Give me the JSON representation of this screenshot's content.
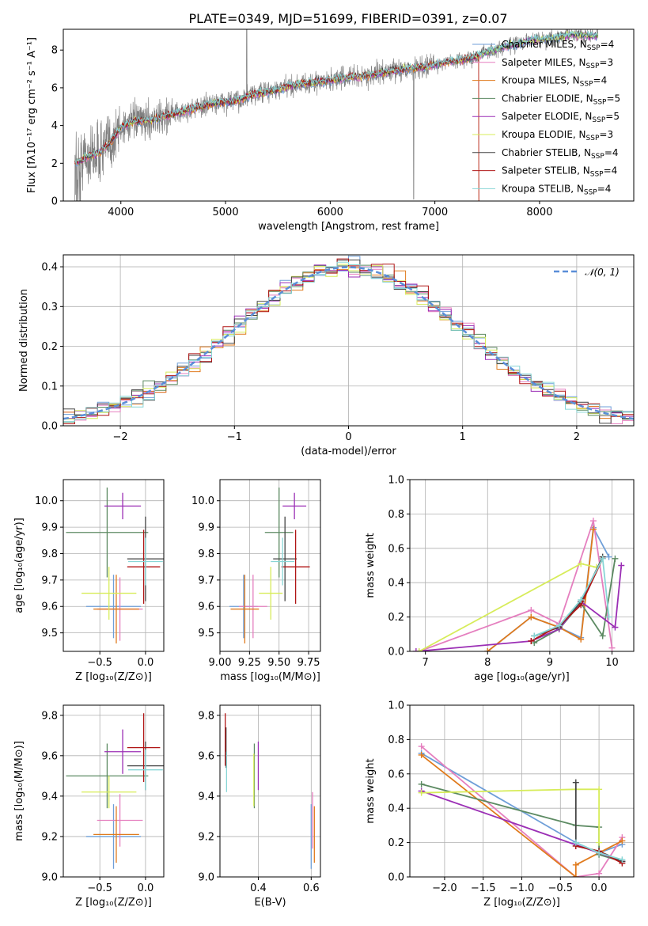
{
  "figure": {
    "title": "PLATE=0349, MJD=51699, FIBERID=0391, z=0.07"
  },
  "palette": {
    "data_gray": "#808080",
    "grid": "#b0b0b0",
    "normal_curve": "#5a8ed8"
  },
  "models": [
    {
      "name": "Chabrier MILES",
      "nssp": "4",
      "color": "#6f9fd8"
    },
    {
      "name": "Salpeter MILES",
      "nssp": "3",
      "color": "#e57fbf"
    },
    {
      "name": "Kroupa MILES",
      "nssp": "4",
      "color": "#e07b1e"
    },
    {
      "name": "Chabrier ELODIE",
      "nssp": "5",
      "color": "#5c8a62"
    },
    {
      "name": "Salpeter ELODIE",
      "nssp": "5",
      "color": "#9b2fb5"
    },
    {
      "name": "Kroupa ELODIE",
      "nssp": "3",
      "color": "#d7ec5a"
    },
    {
      "name": "Chabrier STELIB",
      "nssp": "4",
      "color": "#444444"
    },
    {
      "name": "Salpeter STELIB",
      "nssp": "4",
      "color": "#b01616"
    },
    {
      "name": "Kroupa STELIB",
      "nssp": "4",
      "color": "#88d6d6"
    }
  ],
  "chart_data": [
    {
      "id": "spectrum",
      "type": "line",
      "xlabel": "wavelength [Angstrom, rest frame]",
      "ylabel": "Flux [fλ10⁻¹⁷ erg cm⁻² s⁻¹ A⁻¹]",
      "xlim": [
        3450,
        8900
      ],
      "ylim": [
        0,
        9.1
      ],
      "xticks": [
        4000,
        5000,
        6000,
        7000,
        8000
      ],
      "yticks": [
        0,
        2,
        4,
        6,
        8
      ],
      "grid": false,
      "legend": "top-right",
      "continuum": [
        [
          3560,
          2.0
        ],
        [
          3700,
          2.4
        ],
        [
          3800,
          2.6
        ],
        [
          3900,
          3.1
        ],
        [
          4000,
          3.9
        ],
        [
          4100,
          4.2
        ],
        [
          4300,
          4.3
        ],
        [
          4500,
          4.6
        ],
        [
          4700,
          4.9
        ],
        [
          4900,
          5.2
        ],
        [
          5100,
          5.3
        ],
        [
          5300,
          5.7
        ],
        [
          5500,
          5.9
        ],
        [
          5700,
          6.2
        ],
        [
          5900,
          6.3
        ],
        [
          6100,
          6.5
        ],
        [
          6300,
          6.6
        ],
        [
          6500,
          6.8
        ],
        [
          6700,
          7.0
        ],
        [
          6900,
          7.1
        ],
        [
          7100,
          7.35
        ],
        [
          7300,
          7.5
        ],
        [
          7500,
          7.9
        ],
        [
          7700,
          8.2
        ],
        [
          7900,
          8.5
        ],
        [
          8100,
          8.6
        ],
        [
          8300,
          8.8
        ],
        [
          8500,
          8.75
        ]
      ]
    },
    {
      "id": "residuals",
      "type": "step",
      "xlabel": "(data-model)/error",
      "ylabel": "Normed distribution",
      "xlim": [
        -2.5,
        2.5
      ],
      "ylim": [
        0,
        0.43
      ],
      "xticks": [
        -2,
        -1,
        0,
        1,
        2
      ],
      "xticklabels": [
        "−2",
        "−1",
        "0",
        "1",
        "2"
      ],
      "yticks": [
        0.0,
        0.1,
        0.2,
        0.3,
        0.4
      ],
      "grid": true,
      "legend": "top-right",
      "normal_label": "𝒩(0, 1)",
      "bin_width": 0.1
    },
    {
      "id": "age_vs_Z",
      "type": "scatter",
      "xlabel": "Z [log₁₀(Z/Z⊙)]",
      "ylabel": "age  [log₁₀(age/yr)]",
      "xlim": [
        -0.9,
        0.2
      ],
      "ylim": [
        9.43,
        10.08
      ],
      "xticks": [
        -0.5,
        0.0
      ],
      "xticklabels": [
        "−0.5",
        "0.0"
      ],
      "yticks": [
        9.5,
        9.6,
        9.7,
        9.8,
        9.9,
        10.0
      ],
      "grid": true,
      "points": [
        {
          "x": -0.35,
          "xerr": 0.3,
          "y": 9.6,
          "yerr": 0.12
        },
        {
          "x": -0.28,
          "xerr": 0.25,
          "y": 9.59,
          "yerr": 0.12
        },
        {
          "x": -0.32,
          "xerr": 0.25,
          "y": 9.59,
          "yerr": 0.13
        },
        {
          "x": -0.42,
          "xerr": 0.45,
          "y": 9.88,
          "yerr": 0.17
        },
        {
          "x": -0.25,
          "xerr": 0.2,
          "y": 9.98,
          "yerr": 0.05
        },
        {
          "x": -0.4,
          "xerr": 0.3,
          "y": 9.65,
          "yerr": 0.1
        },
        {
          "x": 0.0,
          "xerr": 0.2,
          "y": 9.78,
          "yerr": 0.16
        },
        {
          "x": -0.02,
          "xerr": 0.18,
          "y": 9.75,
          "yerr": 0.14
        },
        {
          "x": 0.0,
          "xerr": 0.19,
          "y": 9.77,
          "yerr": 0.09
        }
      ]
    },
    {
      "id": "age_vs_mass",
      "type": "scatter",
      "xlabel": "mass [log₁₀(M/M⊙)]",
      "ylabel": "",
      "xlim": [
        9.0,
        9.85
      ],
      "ylim": [
        9.43,
        10.08
      ],
      "xticks": [
        9.0,
        9.25,
        9.5,
        9.75
      ],
      "xticklabels": [
        "9.00",
        "9.25",
        "9.50",
        "9.75"
      ],
      "yticks": [
        9.5,
        9.6,
        9.7,
        9.8,
        9.9,
        10.0
      ],
      "grid": true,
      "points": [
        {
          "x": 9.2,
          "xerr": 0.12,
          "y": 9.6,
          "yerr": 0.12
        },
        {
          "x": 9.28,
          "xerr": 0.12,
          "y": 9.6,
          "yerr": 0.12
        },
        {
          "x": 9.21,
          "xerr": 0.12,
          "y": 9.59,
          "yerr": 0.13
        },
        {
          "x": 9.5,
          "xerr": 0.12,
          "y": 9.88,
          "yerr": 0.17
        },
        {
          "x": 9.63,
          "xerr": 0.1,
          "y": 9.98,
          "yerr": 0.05
        },
        {
          "x": 9.43,
          "xerr": 0.1,
          "y": 9.65,
          "yerr": 0.1
        },
        {
          "x": 9.55,
          "xerr": 0.1,
          "y": 9.78,
          "yerr": 0.16
        },
        {
          "x": 9.64,
          "xerr": 0.12,
          "y": 9.75,
          "yerr": 0.14
        },
        {
          "x": 9.53,
          "xerr": 0.1,
          "y": 9.77,
          "yerr": 0.09
        }
      ]
    },
    {
      "id": "massweight_vs_age",
      "type": "line",
      "xlabel": "age  [log₁₀(age/yr)]",
      "ylabel": "mass weight",
      "xlim": [
        6.75,
        10.35
      ],
      "ylim": [
        0,
        1.0
      ],
      "xticks": [
        7,
        8,
        9,
        10
      ],
      "yticks": [
        0.0,
        0.2,
        0.4,
        0.6,
        0.8,
        1.0
      ],
      "grid": true,
      "series": [
        {
          "x": [
            8.0,
            8.7,
            9.15,
            9.5,
            9.7,
            9.95
          ],
          "y": [
            0.0,
            0.2,
            0.14,
            0.08,
            0.72,
            0.55
          ]
        },
        {
          "x": [
            6.9,
            8.7,
            9.15,
            9.7,
            10.0
          ],
          "y": [
            0.0,
            0.24,
            0.16,
            0.76,
            0.02
          ]
        },
        {
          "x": [
            8.0,
            8.7,
            9.15,
            9.5,
            9.7
          ],
          "y": [
            0.0,
            0.2,
            0.14,
            0.07,
            0.71
          ]
        },
        {
          "x": [
            8.75,
            9.15,
            9.5,
            9.85,
            10.05
          ],
          "y": [
            0.05,
            0.13,
            0.28,
            0.09,
            0.54
          ]
        },
        {
          "x": [
            6.85,
            8.7,
            9.15,
            9.5,
            10.05,
            10.15
          ],
          "y": [
            0.0,
            0.06,
            0.13,
            0.29,
            0.14,
            0.5
          ]
        },
        {
          "x": [
            6.9,
            9.5,
            9.75
          ],
          "y": [
            0.0,
            0.51,
            0.49
          ]
        },
        {
          "x": [
            8.75,
            9.15,
            9.5,
            9.85
          ],
          "y": [
            0.09,
            0.14,
            0.29,
            0.55
          ]
        },
        {
          "x": [
            8.7,
            9.15,
            9.5,
            9.85
          ],
          "y": [
            0.06,
            0.15,
            0.27,
            0.54
          ]
        },
        {
          "x": [
            8.75,
            9.15,
            9.5,
            9.85,
            9.95
          ],
          "y": [
            0.09,
            0.15,
            0.3,
            0.54,
            0.2
          ]
        }
      ]
    },
    {
      "id": "mass_vs_Z",
      "type": "scatter",
      "xlabel": "Z [log₁₀(Z/Z⊙)]",
      "ylabel": "mass [log₁₀(M/M⊙)]",
      "xlim": [
        -0.9,
        0.2
      ],
      "ylim": [
        9.0,
        9.85
      ],
      "xticks": [
        -0.5,
        0.0
      ],
      "xticklabels": [
        "−0.5",
        "0.0"
      ],
      "yticks": [
        9.0,
        9.2,
        9.4,
        9.6,
        9.8
      ],
      "grid": true,
      "points": [
        {
          "x": -0.35,
          "xerr": 0.3,
          "y": 9.2,
          "yerr": 0.16
        },
        {
          "x": -0.28,
          "xerr": 0.25,
          "y": 9.28,
          "yerr": 0.13
        },
        {
          "x": -0.32,
          "xerr": 0.25,
          "y": 9.21,
          "yerr": 0.14
        },
        {
          "x": -0.42,
          "xerr": 0.45,
          "y": 9.5,
          "yerr": 0.16
        },
        {
          "x": -0.25,
          "xerr": 0.2,
          "y": 9.62,
          "yerr": 0.11
        },
        {
          "x": -0.4,
          "xerr": 0.3,
          "y": 9.42,
          "yerr": 0.08
        },
        {
          "x": 0.0,
          "xerr": 0.2,
          "y": 9.55,
          "yerr": 0.12
        },
        {
          "x": -0.02,
          "xerr": 0.18,
          "y": 9.64,
          "yerr": 0.17
        },
        {
          "x": 0.0,
          "xerr": 0.19,
          "y": 9.53,
          "yerr": 0.1
        }
      ]
    },
    {
      "id": "mass_vs_EBV",
      "type": "scatter",
      "xlabel": "E(B-V)",
      "ylabel": "",
      "xlim": [
        0.255,
        0.635
      ],
      "ylim": [
        9.0,
        9.85
      ],
      "xticks": [
        0.4,
        0.6
      ],
      "xticklabels": [
        "0.4",
        "0.6"
      ],
      "yticks": [
        9.0,
        9.2,
        9.4,
        9.6,
        9.8
      ],
      "grid": true,
      "points": [
        {
          "x": 0.6,
          "xerr": 0,
          "y": 9.2,
          "yerr": 0.16
        },
        {
          "x": 0.605,
          "xerr": 0,
          "y": 9.28,
          "yerr": 0.14
        },
        {
          "x": 0.612,
          "xerr": 0,
          "y": 9.21,
          "yerr": 0.14
        },
        {
          "x": 0.385,
          "xerr": 0,
          "y": 9.5,
          "yerr": 0.16
        },
        {
          "x": 0.4,
          "xerr": 0,
          "y": 9.55,
          "yerr": 0.12
        },
        {
          "x": 0.383,
          "xerr": 0,
          "y": 9.48,
          "yerr": 0.13
        },
        {
          "x": 0.278,
          "xerr": 0,
          "y": 9.64,
          "yerr": 0.1
        },
        {
          "x": 0.275,
          "xerr": 0,
          "y": 9.68,
          "yerr": 0.13
        },
        {
          "x": 0.28,
          "xerr": 0,
          "y": 9.52,
          "yerr": 0.1
        }
      ]
    },
    {
      "id": "massweight_vs_Z",
      "type": "line",
      "xlabel": "Z [log₁₀(Z/Z⊙)]",
      "ylabel": "mass weight",
      "xlim": [
        -2.45,
        0.45
      ],
      "ylim": [
        0,
        1.0
      ],
      "xticks": [
        -2.0,
        -1.5,
        -1.0,
        -0.5,
        0.0
      ],
      "xticklabels": [
        "−2.0",
        "−1.5",
        "−1.0",
        "−0.5",
        "0.0"
      ],
      "yticks": [
        0.0,
        0.2,
        0.4,
        0.6,
        0.8,
        1.0
      ],
      "grid": true,
      "series": [
        {
          "x": [
            -2.3,
            -0.3,
            0.0,
            0.3
          ],
          "y": [
            0.72,
            0.2,
            0.14,
            0.19
          ]
        },
        {
          "x": [
            -2.3,
            -0.3,
            0.0,
            0.3
          ],
          "y": [
            0.76,
            0.0,
            0.02,
            0.23
          ]
        },
        {
          "x": [
            -2.3,
            -0.3,
            -0.3,
            0.0,
            0.3
          ],
          "y": [
            0.71,
            0.0,
            0.07,
            0.14,
            0.21
          ]
        },
        {
          "x": [
            -2.3,
            -0.3,
            0.0,
            0.0,
            0.3
          ],
          "y": [
            0.54,
            0.3,
            0.29,
            0.13,
            0.09
          ]
        },
        {
          "x": [
            -2.3,
            0.0,
            0.3
          ],
          "y": [
            0.5,
            0.14,
            0.09
          ]
        },
        {
          "x": [
            -2.3,
            -0.3,
            0.0,
            0.0
          ],
          "y": [
            0.49,
            0.51,
            0.51,
            0.2
          ]
        },
        {
          "x": [
            -0.3,
            -0.3,
            0.0,
            0.3
          ],
          "y": [
            0.55,
            0.18,
            0.15,
            0.09
          ]
        },
        {
          "x": [
            -0.3,
            0.0,
            0.3
          ],
          "y": [
            0.18,
            0.15,
            0.08
          ]
        },
        {
          "x": [
            -0.3,
            0.0,
            0.3
          ],
          "y": [
            0.2,
            0.14,
            0.1
          ]
        }
      ]
    }
  ]
}
